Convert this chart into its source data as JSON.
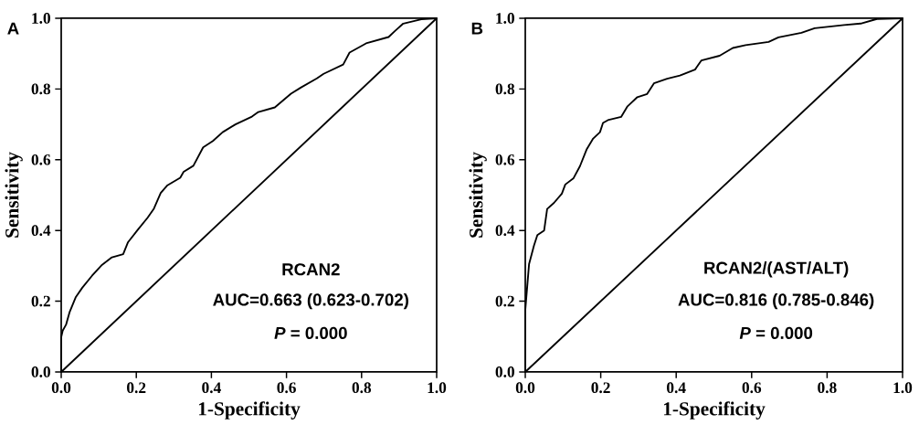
{
  "chart_data": [
    {
      "type": "line",
      "title": "A",
      "xlabel": "1-Specificity",
      "ylabel": "Sensitivity",
      "xlim": [
        0,
        1
      ],
      "ylim": [
        0,
        1
      ],
      "xticks": [
        {
          "value": 0,
          "label": "0.0"
        },
        {
          "value": 0.2,
          "label": "0.2"
        },
        {
          "value": 0.4,
          "label": "0.4"
        },
        {
          "value": 0.6,
          "label": "0.6"
        },
        {
          "value": 0.8,
          "label": "0.8"
        },
        {
          "value": 1,
          "label": "1.0"
        }
      ],
      "yticks": [
        {
          "value": 0,
          "label": "0.0"
        },
        {
          "value": 0.2,
          "label": "0.2"
        },
        {
          "value": 0.4,
          "label": "0.4"
        },
        {
          "value": 0.6,
          "label": "0.6"
        },
        {
          "value": 0.8,
          "label": "0.8"
        },
        {
          "value": 1,
          "label": "1.0"
        }
      ],
      "annotations": [
        "RCAN2",
        "AUC=0.663 (0.623-0.702)",
        "*P* = 0.000"
      ],
      "series": [
        {
          "color": "#000000",
          "x": [
            0,
            0,
            0.004,
            0.013,
            0.022,
            0.039,
            0.056,
            0.082,
            0.109,
            0.135,
            0.165,
            0.178,
            0.204,
            0.23,
            0.247,
            0.265,
            0.282,
            0.317,
            0.326,
            0.352,
            0.378,
            0.404,
            0.43,
            0.464,
            0.508,
            0.525,
            0.569,
            0.612,
            0.638,
            0.681,
            0.699,
            0.751,
            0.768,
            0.812,
            0.872,
            0.889,
            0.911,
            0.959,
            1
          ],
          "values": [
            0,
            0.099,
            0.117,
            0.134,
            0.168,
            0.212,
            0.238,
            0.272,
            0.303,
            0.324,
            0.333,
            0.367,
            0.402,
            0.436,
            0.462,
            0.506,
            0.527,
            0.549,
            0.566,
            0.583,
            0.635,
            0.653,
            0.678,
            0.7,
            0.722,
            0.735,
            0.748,
            0.787,
            0.804,
            0.83,
            0.843,
            0.869,
            0.903,
            0.929,
            0.947,
            0.964,
            0.985,
            0.997,
            1
          ]
        },
        {
          "color": "#000000",
          "x": [
            0,
            1
          ],
          "values": [
            0,
            1
          ]
        }
      ]
    },
    {
      "type": "line",
      "title": "B",
      "xlabel": "1-Specificity",
      "ylabel": "Sensitivity",
      "xlim": [
        0,
        1
      ],
      "ylim": [
        0,
        1
      ],
      "xticks": [
        {
          "value": 0,
          "label": "0.0"
        },
        {
          "value": 0.2,
          "label": "0.2"
        },
        {
          "value": 0.4,
          "label": "0.4"
        },
        {
          "value": 0.6,
          "label": "0.6"
        },
        {
          "value": 0.8,
          "label": "0.8"
        },
        {
          "value": 1,
          "label": "1.0"
        }
      ],
      "yticks": [
        {
          "value": 0,
          "label": "0.0"
        },
        {
          "value": 0.2,
          "label": "0.2"
        },
        {
          "value": 0.4,
          "label": "0.4"
        },
        {
          "value": 0.6,
          "label": "0.6"
        },
        {
          "value": 0.8,
          "label": "0.8"
        },
        {
          "value": 1,
          "label": "1.0"
        }
      ],
      "annotations": [
        "RCAN2/(AST/ALT)",
        "AUC=0.816 (0.785-0.846)",
        "*P* = 0.000"
      ],
      "series": [
        {
          "color": "#000000",
          "x": [
            0,
            0,
            0.006,
            0.01,
            0.023,
            0.032,
            0.05,
            0.058,
            0.076,
            0.097,
            0.106,
            0.128,
            0.145,
            0.163,
            0.18,
            0.198,
            0.206,
            0.219,
            0.254,
            0.271,
            0.297,
            0.323,
            0.341,
            0.376,
            0.41,
            0.45,
            0.467,
            0.515,
            0.55,
            0.584,
            0.645,
            0.671,
            0.732,
            0.767,
            0.845,
            0.889,
            0.932,
            1
          ],
          "values": [
            0,
            0.175,
            0.253,
            0.305,
            0.357,
            0.387,
            0.4,
            0.461,
            0.478,
            0.504,
            0.53,
            0.548,
            0.582,
            0.63,
            0.66,
            0.678,
            0.704,
            0.712,
            0.721,
            0.751,
            0.777,
            0.786,
            0.816,
            0.829,
            0.838,
            0.855,
            0.881,
            0.894,
            0.916,
            0.924,
            0.933,
            0.946,
            0.959,
            0.972,
            0.981,
            0.985,
            0.998,
            1
          ]
        },
        {
          "color": "#000000",
          "x": [
            0,
            1
          ],
          "values": [
            0,
            1
          ]
        }
      ]
    }
  ]
}
